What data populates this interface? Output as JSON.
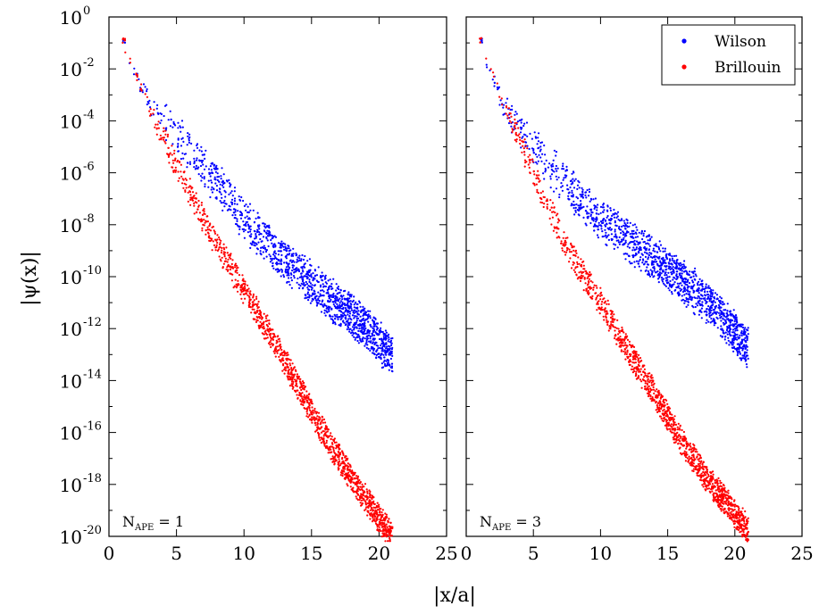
{
  "chart_data": {
    "type": "scatter",
    "x_axis_label": "|x/a|",
    "y_axis_label": "|ψ(x)|",
    "y_scale": "log",
    "legend": {
      "location": "top-right",
      "entries": [
        {
          "name": "Wilson",
          "color": "#0000ff"
        },
        {
          "name": "Brillouin",
          "color": "#ff0000"
        }
      ]
    },
    "panels": [
      {
        "annotation": {
          "main": "N",
          "sub": "APE",
          "rest": " = 1"
        },
        "xlim": [
          0,
          25
        ],
        "ylim_exponent": [
          -20,
          0
        ],
        "x_ticks": [
          0,
          5,
          10,
          15,
          20,
          25
        ],
        "x_tick_labels": [
          "0",
          "5",
          "10",
          "15",
          "20",
          "25"
        ],
        "y_ticks_exponent": [
          0,
          -2,
          -4,
          -6,
          -8,
          -10,
          -12,
          -14,
          -16,
          -18,
          -20
        ],
        "y_tick_labels": [
          "10",
          "10",
          "10",
          "10",
          "10",
          "10",
          "10",
          "10",
          "10",
          "10",
          "10"
        ],
        "y_tick_exponents": [
          "0",
          "-2",
          "-4",
          "-6",
          "-8",
          "-10",
          "-12",
          "-14",
          "-16",
          "-18",
          "-20"
        ],
        "series": [
          {
            "name": "Wilson",
            "color": "#0000ff",
            "trend_x": [
              1.0,
              2.0,
              3.0,
              4.0,
              6.0,
              8.0,
              10.0,
              12.0,
              14.0,
              16.0,
              18.0,
              19.5,
              21.0
            ],
            "trend_log10_y": [
              -1.0,
              -2.2,
              -3.2,
              -4.0,
              -5.1,
              -6.4,
              -7.8,
              -8.9,
              -9.8,
              -10.7,
              -11.5,
              -12.2,
              -13.1
            ],
            "spread_decades": 0.9
          },
          {
            "name": "Brillouin",
            "color": "#ff0000",
            "trend_x": [
              1.0,
              2.0,
              3.0,
              4.0,
              6.0,
              8.0,
              10.0,
              12.0,
              14.0,
              16.0,
              18.0,
              20.0,
              21.0
            ],
            "trend_log10_y": [
              -1.0,
              -2.3,
              -3.5,
              -4.6,
              -6.8,
              -8.8,
              -10.5,
              -12.3,
              -14.2,
              -16.1,
              -17.8,
              -19.3,
              -20.0
            ],
            "spread_decades": 0.6
          }
        ]
      },
      {
        "annotation": {
          "main": "N",
          "sub": "APE",
          "rest": " = 3"
        },
        "xlim": [
          0,
          25
        ],
        "ylim_exponent": [
          -20,
          0
        ],
        "x_ticks": [
          0,
          5,
          10,
          15,
          20,
          25
        ],
        "x_tick_labels": [
          "0",
          "5",
          "10",
          "15",
          "20",
          "25"
        ],
        "series": [
          {
            "name": "Wilson",
            "color": "#0000ff",
            "trend_x": [
              1.0,
              2.0,
              3.0,
              4.0,
              6.0,
              8.0,
              10.0,
              12.0,
              14.0,
              16.0,
              18.0,
              19.5,
              21.0
            ],
            "trend_log10_y": [
              -1.0,
              -2.5,
              -3.6,
              -4.4,
              -5.6,
              -6.8,
              -7.8,
              -8.6,
              -9.3,
              -10.1,
              -11.0,
              -11.8,
              -12.8
            ],
            "spread_decades": 0.9
          },
          {
            "name": "Brillouin",
            "color": "#ff0000",
            "trend_x": [
              1.0,
              2.0,
              3.0,
              4.0,
              6.0,
              8.0,
              10.0,
              12.0,
              14.0,
              16.0,
              18.0,
              20.0,
              21.0
            ],
            "trend_log10_y": [
              -1.0,
              -2.3,
              -3.5,
              -4.8,
              -7.2,
              -9.3,
              -11.0,
              -12.8,
              -14.5,
              -16.3,
              -17.8,
              -19.1,
              -19.8
            ],
            "spread_decades": 0.6
          }
        ]
      }
    ]
  }
}
